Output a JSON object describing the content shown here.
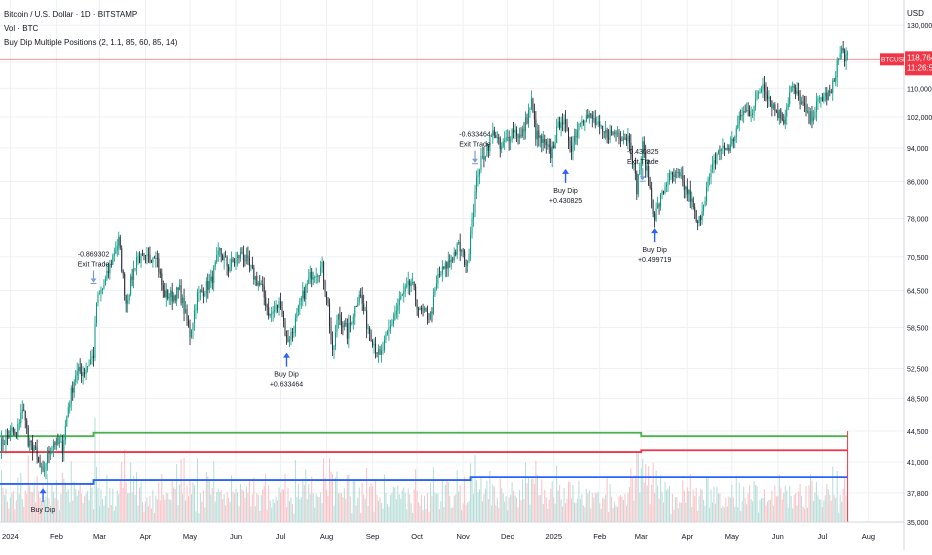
{
  "legend": {
    "symbol_line": "Bitcoin / U.S. Dollar · 1D · BITSTAMP",
    "volume_line": "Vol · BTC",
    "strategy_line": "Buy Dip Multiple Positions (2, 1.1, 85, 60, 85, 14)"
  },
  "price_axis": {
    "currency": "USD",
    "price_tag_symbol": "BTCUSD",
    "last_price": "118,764",
    "countdown": "11:26:52"
  },
  "colors": {
    "up": "#089981",
    "down": "#131722",
    "position_green": "#4caf50",
    "position_red": "#f23645",
    "position_blue": "#2962ff",
    "buy_arrow": "#2962ff",
    "exit_arrow": "#7b9ad6",
    "volume_up": "#a5d6cf",
    "volume_down": "#f7b3b9",
    "price_line": "#f23645",
    "grid": "#eef0f3"
  },
  "chart_data": {
    "type": "candlestick",
    "title": "Bitcoin / U.S. Dollar · 1D · BITSTAMP",
    "y_scale": "log",
    "ylim": [
      35000,
      136000
    ],
    "xlim": [
      "2023-12-25",
      "2025-08-25"
    ],
    "y_ticks": [
      "130,000",
      "118,000",
      "110,000",
      "102,000",
      "94,000",
      "86,000",
      "78,000",
      "70,500",
      "64,500",
      "58,500",
      "52,500",
      "48,500",
      "44,500",
      "41,000",
      "37,800",
      "35,000"
    ],
    "x_ticks": [
      {
        "date": "2024-01-01",
        "label": "2024"
      },
      {
        "date": "2024-02-01",
        "label": "Feb"
      },
      {
        "date": "2024-03-01",
        "label": "Mar"
      },
      {
        "date": "2024-04-01",
        "label": "Apr"
      },
      {
        "date": "2024-05-01",
        "label": "May"
      },
      {
        "date": "2024-06-01",
        "label": "Jun"
      },
      {
        "date": "2024-07-01",
        "label": "Jul"
      },
      {
        "date": "2024-08-01",
        "label": "Aug"
      },
      {
        "date": "2024-09-01",
        "label": "Sep"
      },
      {
        "date": "2024-10-01",
        "label": "Oct"
      },
      {
        "date": "2024-11-01",
        "label": "Nov"
      },
      {
        "date": "2024-12-01",
        "label": "Dec"
      },
      {
        "date": "2025-01-01",
        "label": "2025"
      },
      {
        "date": "2025-02-01",
        "label": "Feb"
      },
      {
        "date": "2025-03-01",
        "label": "Mar"
      },
      {
        "date": "2025-04-01",
        "label": "Apr"
      },
      {
        "date": "2025-05-01",
        "label": "May"
      },
      {
        "date": "2025-06-01",
        "label": "Jun"
      },
      {
        "date": "2025-07-01",
        "label": "Jul"
      },
      {
        "date": "2025-08-01",
        "label": "Aug"
      }
    ],
    "price_path": [
      [
        "2023-12-25",
        42800
      ],
      [
        "2024-01-02",
        44500
      ],
      [
        "2024-01-05",
        43800
      ],
      [
        "2024-01-08",
        46900
      ],
      [
        "2024-01-11",
        46500
      ],
      [
        "2024-01-13",
        42800
      ],
      [
        "2024-01-17",
        42700
      ],
      [
        "2024-01-19",
        41300
      ],
      [
        "2024-01-23",
        39500
      ],
      [
        "2024-01-26",
        41800
      ],
      [
        "2024-01-30",
        43300
      ],
      [
        "2024-02-05",
        42600
      ],
      [
        "2024-02-09",
        47500
      ],
      [
        "2024-02-14",
        51800
      ],
      [
        "2024-02-20",
        52200
      ],
      [
        "2024-02-26",
        54500
      ],
      [
        "2024-02-28",
        62500
      ],
      [
        "2024-03-05",
        66000
      ],
      [
        "2024-03-11",
        71500
      ],
      [
        "2024-03-14",
        73500
      ],
      [
        "2024-03-19",
        62500
      ],
      [
        "2024-03-26",
        70500
      ],
      [
        "2024-04-01",
        69700
      ],
      [
        "2024-04-08",
        71500
      ],
      [
        "2024-04-13",
        64000
      ],
      [
        "2024-04-19",
        63500
      ],
      [
        "2024-04-24",
        64500
      ],
      [
        "2024-05-01",
        57500
      ],
      [
        "2024-05-06",
        63500
      ],
      [
        "2024-05-15",
        66000
      ],
      [
        "2024-05-21",
        71500
      ],
      [
        "2024-05-27",
        68500
      ],
      [
        "2024-06-05",
        71200
      ],
      [
        "2024-06-12",
        67500
      ],
      [
        "2024-06-18",
        65000
      ],
      [
        "2024-06-24",
        60300
      ],
      [
        "2024-07-01",
        62500
      ],
      [
        "2024-07-05",
        56500
      ],
      [
        "2024-07-09",
        57800
      ],
      [
        "2024-07-15",
        62800
      ],
      [
        "2024-07-22",
        67500
      ],
      [
        "2024-07-29",
        68500
      ],
      [
        "2024-08-02",
        62000
      ],
      [
        "2024-08-05",
        54200
      ],
      [
        "2024-08-09",
        60800
      ],
      [
        "2024-08-15",
        57500
      ],
      [
        "2024-08-23",
        64300
      ],
      [
        "2024-08-28",
        59200
      ],
      [
        "2024-09-06",
        53900
      ],
      [
        "2024-09-12",
        58000
      ],
      [
        "2024-09-20",
        63200
      ],
      [
        "2024-09-27",
        65800
      ],
      [
        "2024-10-03",
        60800
      ],
      [
        "2024-10-10",
        60300
      ],
      [
        "2024-10-15",
        66800
      ],
      [
        "2024-10-21",
        68900
      ],
      [
        "2024-10-29",
        72500
      ],
      [
        "2024-11-04",
        68800
      ],
      [
        "2024-11-06",
        75800
      ],
      [
        "2024-11-11",
        88500
      ],
      [
        "2024-11-13",
        90500
      ],
      [
        "2024-11-22",
        98500
      ],
      [
        "2024-11-26",
        93500
      ],
      [
        "2024-12-05",
        98800
      ],
      [
        "2024-12-10",
        96500
      ],
      [
        "2024-12-17",
        106000
      ],
      [
        "2024-12-20",
        97500
      ],
      [
        "2024-12-30",
        92500
      ],
      [
        "2025-01-06",
        102000
      ],
      [
        "2025-01-13",
        94500
      ],
      [
        "2025-01-20",
        102500
      ],
      [
        "2025-01-27",
        101500
      ],
      [
        "2025-02-03",
        97500
      ],
      [
        "2025-02-12",
        97800
      ],
      [
        "2025-02-21",
        96500
      ],
      [
        "2025-02-26",
        84500
      ],
      [
        "2025-03-02",
        94300
      ],
      [
        "2025-03-10",
        78500
      ],
      [
        "2025-03-19",
        86800
      ],
      [
        "2025-03-26",
        87200
      ],
      [
        "2025-04-03",
        82500
      ],
      [
        "2025-04-08",
        76300
      ],
      [
        "2025-04-14",
        84500
      ],
      [
        "2025-04-22",
        93500
      ],
      [
        "2025-04-30",
        94200
      ],
      [
        "2025-05-08",
        103200
      ],
      [
        "2025-05-14",
        103500
      ],
      [
        "2025-05-22",
        111500
      ],
      [
        "2025-05-30",
        104000
      ],
      [
        "2025-06-05",
        101500
      ],
      [
        "2025-06-10",
        110200
      ],
      [
        "2025-06-16",
        106800
      ],
      [
        "2025-06-22",
        101000
      ],
      [
        "2025-06-30",
        107200
      ],
      [
        "2025-07-07",
        108300
      ],
      [
        "2025-07-11",
        117500
      ],
      [
        "2025-07-14",
        121500
      ],
      [
        "2025-07-18",
        118764
      ]
    ],
    "volume_ymax": 1,
    "position_levels": [
      {
        "name": "green",
        "segments": [
          [
            "2023-12-25",
            43900
          ],
          [
            "2024-02-26",
            44300
          ],
          [
            "2025-03-01",
            43900
          ],
          [
            "2025-07-18",
            43900
          ]
        ]
      },
      {
        "name": "red",
        "segments": [
          [
            "2023-12-25",
            42100
          ],
          [
            "2025-03-01",
            42300
          ],
          [
            "2025-07-18",
            42300
          ]
        ]
      },
      {
        "name": "blue",
        "segments": [
          [
            "2023-12-25",
            38700
          ],
          [
            "2024-02-26",
            39100
          ],
          [
            "2024-11-06",
            39400
          ],
          [
            "2025-07-18",
            39400
          ]
        ]
      }
    ],
    "annotations": [
      {
        "kind": "buy",
        "date": "2024-01-23",
        "price": 39500,
        "label": "Buy Dip",
        "value": ""
      },
      {
        "kind": "exit",
        "date": "2024-02-26",
        "price": 64500,
        "label": "Exit Trade",
        "value": "-0.869302"
      },
      {
        "kind": "buy",
        "date": "2024-07-05",
        "price": 56500,
        "label": "Buy Dip",
        "value": "+0.633464"
      },
      {
        "kind": "exit",
        "date": "2024-11-09",
        "price": 88500,
        "label": "Exit Trade",
        "value": "-0.633464"
      },
      {
        "kind": "buy",
        "date": "2025-01-09",
        "price": 91800,
        "label": "Buy Dip",
        "value": "+0.430825"
      },
      {
        "kind": "exit",
        "date": "2025-03-02",
        "price": 84500,
        "label": "Exit Trade",
        "value": "-0.430825"
      },
      {
        "kind": "buy",
        "date": "2025-03-10",
        "price": 78500,
        "label": "Buy Dip",
        "value": "+0.499719"
      }
    ]
  }
}
